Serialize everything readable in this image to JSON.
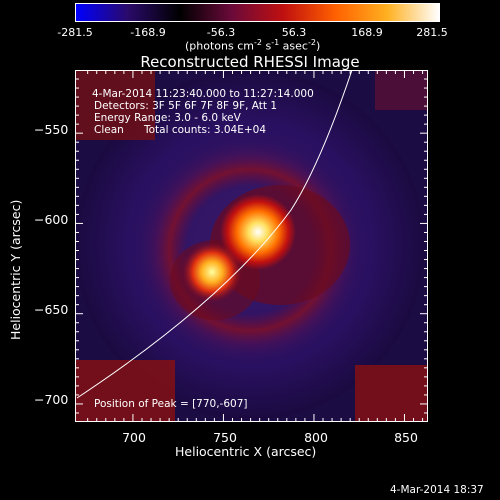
{
  "colorbar": {
    "ticks": [
      "-281.5",
      "-168.9",
      "-56.3",
      "56.3",
      "168.9",
      "281.5"
    ],
    "unit_prefix": "(photons cm",
    "unit_exp1": "-2",
    "unit_mid": " s",
    "unit_exp2": "-1",
    "unit_mid2": " asec",
    "unit_exp3": "-2",
    "unit_suffix": ")",
    "colors": [
      "#0000ff",
      "#2a0a6a",
      "#000000",
      "#6a0a3a",
      "#c01010",
      "#ff6000",
      "#ffb020",
      "#ffffff"
    ]
  },
  "image": {
    "title": "Reconstructed RHESSI Image",
    "time_range": "4-Mar-2014 11:23:40.000 to 11:27:14.000",
    "detectors": "Detectors: 3F 5F 6F 7F 8F 9F, Att 1",
    "energy_range": "Energy Range: 3.0 - 6.0 keV",
    "clean_label": "Clean",
    "total_counts": "Total counts: 3.04E+04",
    "peak_position": "Position of Peak = [770,-607]",
    "peak_x": 770,
    "peak_y": -607
  },
  "axes": {
    "xlabel": "Heliocentric X (arcsec)",
    "ylabel": "Heliocentric Y (arcsec)",
    "xlim": [
      668,
      863
    ],
    "ylim": [
      -710,
      -515
    ],
    "xticks": [
      {
        "v": 700,
        "label": "700"
      },
      {
        "v": 750,
        "label": "750"
      },
      {
        "v": 800,
        "label": "800"
      },
      {
        "v": 850,
        "label": "850"
      }
    ],
    "yticks": [
      {
        "v": -550,
        "label": "−550"
      },
      {
        "v": -600,
        "label": "−600"
      },
      {
        "v": -650,
        "label": "−650"
      },
      {
        "v": -700,
        "label": "−700"
      }
    ]
  },
  "footer": {
    "timestamp": "4-Mar-2014 18:37"
  }
}
